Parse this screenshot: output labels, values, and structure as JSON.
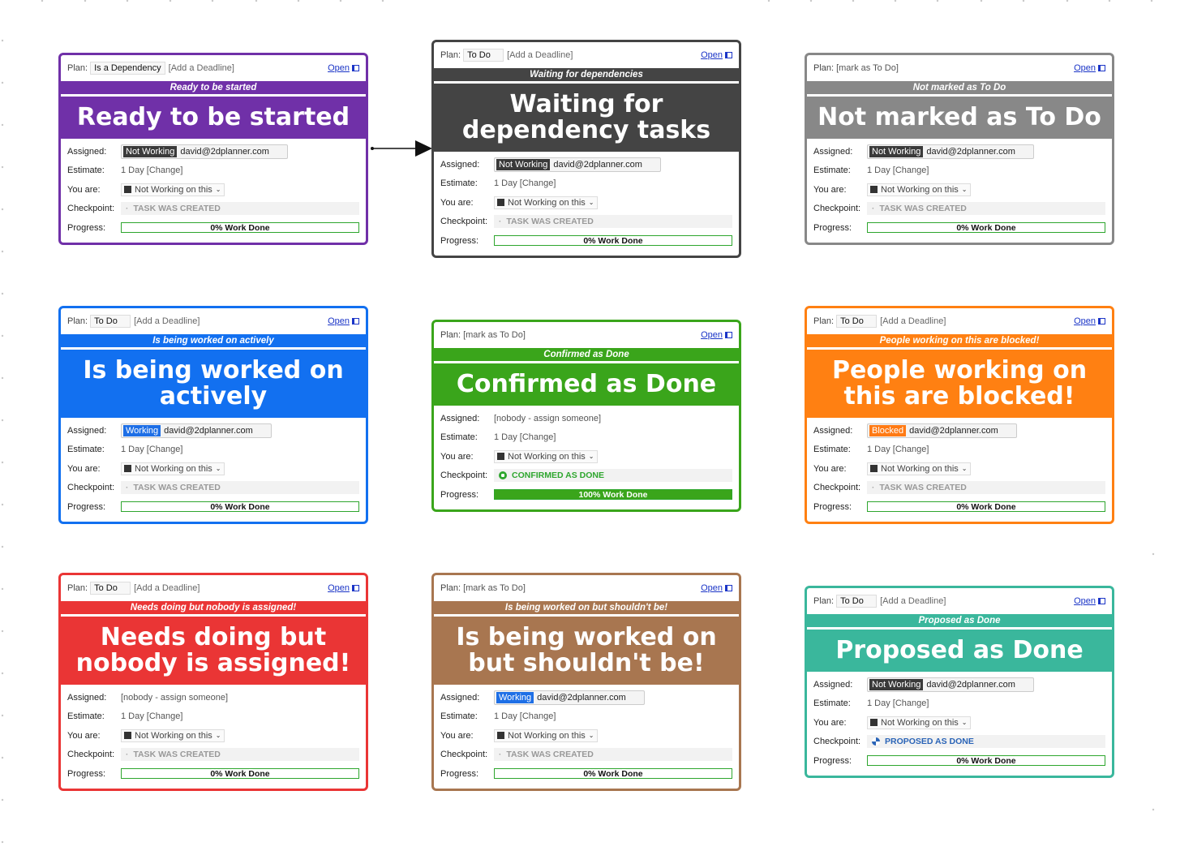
{
  "common": {
    "plan_label": "Plan:",
    "deadline": "[Add a Deadline]",
    "open": "Open",
    "assigned_label": "Assigned:",
    "estimate_label": "Estimate:",
    "you_are_label": "You are:",
    "checkpoint_label": "Checkpoint:",
    "progress_label": "Progress:",
    "estimate_value": "1 Day [Change]",
    "you_are_value": "Not Working on this",
    "email": "david@2dplanner.com",
    "nobody": "[nobody - assign someone]"
  },
  "cards": [
    {
      "id": "ready",
      "color": "#7030a8",
      "plan": "Is a Dependency",
      "show_deadline": true,
      "strip": "Ready to be started",
      "title": "Ready to be started",
      "assigned_tag": "Not Working",
      "assigned_tag_color": "#3a3a3a",
      "checkpoint": "TASK WAS CREATED",
      "checkpoint_kind": "created",
      "progress": "0% Work Done",
      "progress_pct": 0
    },
    {
      "id": "waiting",
      "color": "#444444",
      "plan": "To Do",
      "show_deadline": true,
      "strip": "Waiting for dependencies",
      "title": "Waiting for dependency tasks",
      "assigned_tag": "Not Working",
      "assigned_tag_color": "#3a3a3a",
      "checkpoint": "TASK WAS CREATED",
      "checkpoint_kind": "created",
      "progress": "0% Work Done",
      "progress_pct": 0
    },
    {
      "id": "not-marked",
      "color": "#888888",
      "plan": "[mark as To Do]",
      "show_deadline": false,
      "strip": "Not marked as To Do",
      "title": "Not marked as To Do",
      "assigned_tag": "Not Working",
      "assigned_tag_color": "#3a3a3a",
      "checkpoint": "TASK WAS CREATED",
      "checkpoint_kind": "created",
      "progress": "0% Work Done",
      "progress_pct": 0
    },
    {
      "id": "active",
      "color": "#1270f0",
      "plan": "To Do",
      "show_deadline": true,
      "strip": "Is being worked on actively",
      "title": "Is being worked on actively",
      "assigned_tag": "Working",
      "assigned_tag_color": "#1e6fe6",
      "checkpoint": "TASK WAS CREATED",
      "checkpoint_kind": "created",
      "progress": "0% Work Done",
      "progress_pct": 0
    },
    {
      "id": "confirmed",
      "color": "#3aa51b",
      "plan": "[mark as To Do]",
      "show_deadline": false,
      "strip": "Confirmed as Done",
      "title": "Confirmed as Done",
      "assigned_tag": "",
      "assigned_tag_color": "",
      "checkpoint": "CONFIRMED AS DONE",
      "checkpoint_kind": "done",
      "progress": "100% Work Done",
      "progress_pct": 100
    },
    {
      "id": "blocked",
      "color": "#ff8012",
      "plan": "To Do",
      "show_deadline": true,
      "strip": "People working on this are blocked!",
      "title": "People working on this are blocked!",
      "assigned_tag": "Blocked",
      "assigned_tag_color": "#ff7a14",
      "checkpoint": "TASK WAS CREATED",
      "checkpoint_kind": "created",
      "progress": "0% Work Done",
      "progress_pct": 0
    },
    {
      "id": "nobody",
      "color": "#ea3535",
      "plan": "To Do",
      "show_deadline": true,
      "strip": "Needs doing but nobody is assigned!",
      "title": "Needs doing but nobody is assigned!",
      "assigned_tag": "",
      "assigned_tag_color": "",
      "checkpoint": "TASK WAS CREATED",
      "checkpoint_kind": "created",
      "progress": "0% Work Done",
      "progress_pct": 0
    },
    {
      "id": "shouldnt",
      "color": "#a87650",
      "plan": "[mark as To Do]",
      "show_deadline": false,
      "strip": "Is being worked on but shouldn't be!",
      "title": "Is being worked on but shouldn't be!",
      "assigned_tag": "Working",
      "assigned_tag_color": "#1e6fe6",
      "checkpoint": "TASK WAS CREATED",
      "checkpoint_kind": "created",
      "progress": "0% Work Done",
      "progress_pct": 0
    },
    {
      "id": "proposed",
      "color": "#3ab79c",
      "plan": "To Do",
      "show_deadline": true,
      "strip": "Proposed as Done",
      "title": "Proposed as Done",
      "assigned_tag": "Not Working",
      "assigned_tag_color": "#3a3a3a",
      "checkpoint": "PROPOSED AS DONE",
      "checkpoint_kind": "proposed",
      "progress": "0% Work Done",
      "progress_pct": 0
    }
  ]
}
